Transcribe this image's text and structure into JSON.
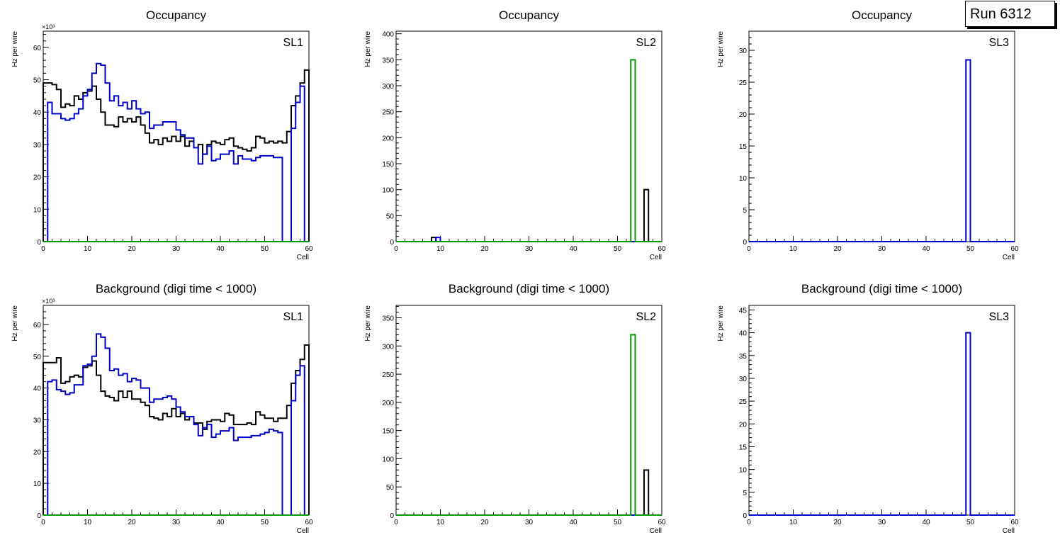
{
  "run_label": "Run 6312",
  "colors": {
    "sl_black": "#000000",
    "sl_blue": "#0000cc",
    "sl_green": "#009900"
  },
  "chart_data": [
    {
      "type": "histogram",
      "title": "Occupancy",
      "label": "SL1",
      "xlabel": "Cell",
      "ylabel": "Hz per wire",
      "exponent": "×10³",
      "xlim": [
        0,
        60
      ],
      "ylim": [
        0,
        65
      ],
      "xticks": [
        0,
        10,
        20,
        30,
        40,
        50,
        60
      ],
      "yticks": [
        0,
        10,
        20,
        30,
        40,
        50,
        60
      ],
      "series": [
        {
          "name": "black",
          "color": "#000000",
          "x0": 0,
          "values": [
            49,
            49,
            48.5,
            47,
            41.5,
            42.5,
            42,
            45,
            44,
            46,
            46.5,
            48,
            44,
            40,
            36,
            36,
            35.5,
            38.5,
            37,
            38,
            37,
            38.5,
            36,
            33.5,
            30.5,
            31.5,
            30,
            32,
            31,
            32.5,
            31,
            32.5,
            29.5,
            31,
            29,
            30,
            27,
            30,
            31,
            30.5,
            30,
            31.5,
            32,
            29.5,
            29,
            28.5,
            28,
            29,
            32.5,
            32,
            30.5,
            31,
            30.5,
            31,
            30.5,
            34,
            42,
            45,
            49,
            53
          ]
        },
        {
          "name": "blue",
          "color": "#0000cc",
          "x0": 0,
          "values": [
            0,
            43,
            39.5,
            39.5,
            38,
            37.5,
            38,
            39.5,
            41,
            45,
            47,
            52,
            55,
            54.5,
            49,
            43.5,
            45,
            42,
            43,
            41,
            43.5,
            41,
            39.5,
            40,
            35,
            36,
            36,
            37,
            37,
            37,
            34.5,
            33,
            32,
            32,
            29,
            24,
            27,
            29.5,
            25,
            25.5,
            27,
            27,
            28,
            24,
            26.5,
            25.5,
            25.5,
            25,
            26,
            26.5,
            26.5,
            26.5,
            26,
            26,
            0,
            0,
            35,
            43,
            48,
            0
          ]
        },
        {
          "name": "green",
          "color": "#009900",
          "x0": 0,
          "values": "zeros"
        }
      ]
    },
    {
      "type": "histogram",
      "title": "Occupancy",
      "label": "SL2",
      "xlabel": "Cell",
      "ylabel": "Hz per wire",
      "exponent": "",
      "xlim": [
        0,
        60
      ],
      "ylim": [
        0,
        405
      ],
      "xticks": [
        0,
        10,
        20,
        30,
        40,
        50,
        60
      ],
      "yticks": [
        0,
        50,
        100,
        150,
        200,
        250,
        300,
        350,
        400
      ],
      "series": [
        {
          "name": "black",
          "color": "#000000",
          "x0": 0,
          "sparse": [
            [
              8,
              8
            ],
            [
              56,
              100
            ]
          ]
        },
        {
          "name": "blue",
          "color": "#0000cc",
          "x0": 0,
          "sparse": [
            [
              9,
              8
            ]
          ]
        },
        {
          "name": "green",
          "color": "#009900",
          "x0": 0,
          "sparse": [
            [
              53,
              350
            ]
          ]
        }
      ]
    },
    {
      "type": "histogram",
      "title": "Occupancy",
      "label": "SL3",
      "xlabel": "Cell",
      "ylabel": "Hz per wire",
      "exponent": "",
      "xlim": [
        0,
        60
      ],
      "ylim": [
        0,
        33
      ],
      "xticks": [
        0,
        10,
        20,
        30,
        40,
        50,
        60
      ],
      "yticks": [
        0,
        5,
        10,
        15,
        20,
        25,
        30
      ],
      "series": [
        {
          "name": "blue",
          "color": "#0000cc",
          "x0": 0,
          "sparse": [
            [
              49,
              28.5
            ]
          ]
        }
      ]
    },
    {
      "type": "histogram",
      "title": "Background (digi time < 1000)",
      "label": "SL1",
      "xlabel": "Cell",
      "ylabel": "Hz per wire",
      "exponent": "×10³",
      "xlim": [
        0,
        60
      ],
      "ylim": [
        0,
        66
      ],
      "xticks": [
        0,
        10,
        20,
        30,
        40,
        50,
        60
      ],
      "yticks": [
        0,
        10,
        20,
        30,
        40,
        50,
        60
      ],
      "series": [
        {
          "name": "black",
          "color": "#000000",
          "x0": 0,
          "values": [
            48,
            48,
            48,
            49.5,
            41.5,
            42,
            43.5,
            44,
            43.5,
            46.5,
            47,
            48.5,
            44,
            39,
            37.5,
            37,
            36,
            39,
            37,
            39,
            36.5,
            36.5,
            35.5,
            34.5,
            31,
            30.5,
            30,
            32,
            31,
            33.5,
            31,
            32,
            30,
            31,
            29,
            29,
            27,
            29.5,
            30,
            30,
            29.5,
            32,
            31.5,
            28.5,
            28.5,
            28.5,
            29,
            28.5,
            32.5,
            31.5,
            30.5,
            30.5,
            29.5,
            30.5,
            30.5,
            34.5,
            41.5,
            45.5,
            49,
            53.5
          ]
        },
        {
          "name": "blue",
          "color": "#0000cc",
          "x0": 0,
          "values": [
            0,
            42,
            42.5,
            39.5,
            39,
            38,
            38.5,
            41,
            41,
            47,
            47.5,
            50,
            57,
            56,
            52.5,
            45.5,
            46,
            44,
            44.5,
            42,
            43,
            42.5,
            40,
            40,
            35.5,
            36.5,
            36.5,
            37,
            37.5,
            36.5,
            34,
            32.5,
            31,
            31,
            28.5,
            25,
            27.5,
            28.5,
            24.5,
            25.5,
            26.5,
            26.5,
            27.5,
            23.5,
            24.5,
            24.5,
            24.5,
            25,
            25,
            25.5,
            26,
            27,
            26.5,
            26,
            0,
            0,
            36,
            44,
            47,
            0
          ]
        },
        {
          "name": "green",
          "color": "#009900",
          "x0": 0,
          "values": "zeros"
        }
      ]
    },
    {
      "type": "histogram",
      "title": "Background (digi time < 1000)",
      "label": "SL2",
      "xlabel": "Cell",
      "ylabel": "Hz per wire",
      "exponent": "",
      "xlim": [
        0,
        60
      ],
      "ylim": [
        0,
        372
      ],
      "xticks": [
        0,
        10,
        20,
        30,
        40,
        50,
        60
      ],
      "yticks": [
        0,
        50,
        100,
        150,
        200,
        250,
        300,
        350
      ],
      "series": [
        {
          "name": "black",
          "color": "#000000",
          "x0": 0,
          "sparse": [
            [
              56,
              80
            ]
          ]
        },
        {
          "name": "blue",
          "color": "#0000cc",
          "x0": 0,
          "sparse": []
        },
        {
          "name": "green",
          "color": "#009900",
          "x0": 0,
          "sparse": [
            [
              53,
              320
            ]
          ]
        }
      ]
    },
    {
      "type": "histogram",
      "title": "Background (digi time < 1000)",
      "label": "SL3",
      "xlabel": "Cell",
      "ylabel": "Hz per wire",
      "exponent": "",
      "xlim": [
        0,
        60
      ],
      "ylim": [
        0,
        46
      ],
      "xticks": [
        0,
        10,
        20,
        30,
        40,
        50,
        60
      ],
      "yticks": [
        0,
        5,
        10,
        15,
        20,
        25,
        30,
        35,
        40,
        45
      ],
      "series": [
        {
          "name": "blue",
          "color": "#0000cc",
          "x0": 0,
          "sparse": [
            [
              49,
              40
            ]
          ]
        }
      ]
    }
  ]
}
